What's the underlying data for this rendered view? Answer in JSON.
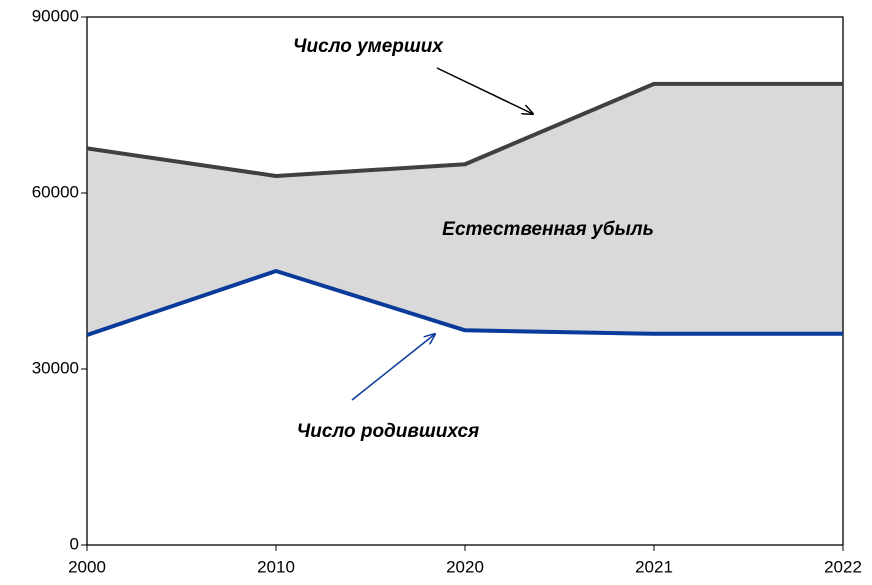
{
  "chart_data": {
    "type": "line",
    "categories": [
      "2000",
      "2010",
      "2020",
      "2021",
      "2022"
    ],
    "series": [
      {
        "name": "Число умерших",
        "color": "#404040",
        "values": [
          67600,
          62900,
          64900,
          78600,
          78600
        ]
      },
      {
        "name": "Число родившихся",
        "color": "#0a3a9a",
        "values": [
          35800,
          46700,
          36600,
          36000,
          36000
        ]
      }
    ],
    "fill_label": "Естественная убыль",
    "fill_color": "#d9d9d9",
    "ylim": [
      0,
      90000
    ],
    "yticks": [
      0,
      30000,
      60000,
      90000
    ],
    "grid": false
  }
}
